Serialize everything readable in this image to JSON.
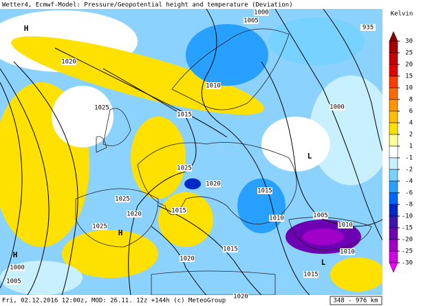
{
  "header": {
    "title": "Wetter4, Ecmwf-Model: Pressure/Geopotential height and temperature (Deviation)"
  },
  "footer": {
    "run": "Fri, 02.12.2016 12:00z, MOD: 26.11. 12z +144h (c) MeteoGroup",
    "scale": "348 - 976 km"
  },
  "legend": {
    "title": "Kelvin",
    "ticks": [
      30,
      25,
      20,
      15,
      10,
      8,
      6,
      4,
      2,
      1,
      -1,
      -2,
      -4,
      -6,
      -8,
      -10,
      -15,
      -20,
      -25,
      -30
    ],
    "colors": [
      "#8b0000",
      "#a50000",
      "#c80000",
      "#e60000",
      "#ff3c00",
      "#ff6a00",
      "#ff9600",
      "#ffbe00",
      "#ffe100",
      "#ffff96",
      "#ffffff",
      "#c8f0ff",
      "#78d2ff",
      "#28a0ff",
      "#0064ff",
      "#0028c8",
      "#3c14b4",
      "#6e00b4",
      "#a000c8",
      "#d200e6",
      "#ff00ff"
    ]
  },
  "isobar_labels": [
    "1000",
    "1005",
    "935",
    "1020",
    "1010",
    "1025",
    "1015",
    "1000",
    "1025",
    "1020",
    "1015",
    "1025",
    "1015",
    "1020",
    "1010",
    "1005",
    "1010",
    "1025",
    "1010",
    "1015",
    "1020",
    "1015",
    "1000",
    "1005",
    "1020"
  ],
  "pressure_centers": [
    "H",
    "H",
    "H",
    "L",
    "L"
  ]
}
